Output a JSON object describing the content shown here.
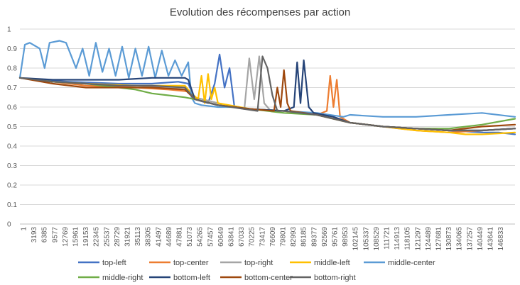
{
  "chart_data": {
    "type": "line",
    "title": "Evolution des récompenses par action",
    "xlabel": "",
    "ylabel": "",
    "ylim": [
      0,
      1
    ],
    "yticks": [
      0,
      0.1,
      0.2,
      0.3,
      0.4,
      0.5,
      0.6,
      0.7,
      0.8,
      0.9,
      1
    ],
    "ytick_labels": [
      "0",
      "0.1",
      "0.2",
      "0.3",
      "0.4",
      "0.5",
      "0.6",
      "0.7",
      "0.8",
      "0.9",
      "1"
    ],
    "xlim": [
      1,
      150000
    ],
    "xtick_labels": [
      "1",
      "3193",
      "6385",
      "9577",
      "12769",
      "15961",
      "19153",
      "22345",
      "25537",
      "28729",
      "31921",
      "35113",
      "38305",
      "41497",
      "44689",
      "47881",
      "51073",
      "54265",
      "57457",
      "60649",
      "63841",
      "67033",
      "70225",
      "73417",
      "76609",
      "79801",
      "82993",
      "86185",
      "89377",
      "92569",
      "95761",
      "98953",
      "102145",
      "105337",
      "108529",
      "111721",
      "114913",
      "118105",
      "121297",
      "124489",
      "127681",
      "130873",
      "134065",
      "137257",
      "140449",
      "143641",
      "146833"
    ],
    "grid": "horizontal",
    "legend_position": "bottom",
    "series": [
      {
        "name": "top-left",
        "color": "#4472C4",
        "x": [
          1,
          5000,
          15000,
          30000,
          40000,
          48000,
          51000,
          53000,
          55000,
          57000,
          59000,
          60500,
          62000,
          63500,
          65000,
          70000,
          80000,
          90000,
          100000,
          110000,
          120000,
          130000,
          140000,
          145000,
          150000
        ],
        "y": [
          0.75,
          0.74,
          0.73,
          0.72,
          0.72,
          0.73,
          0.72,
          0.64,
          0.63,
          0.62,
          0.72,
          0.87,
          0.7,
          0.8,
          0.6,
          0.59,
          0.58,
          0.56,
          0.52,
          0.5,
          0.49,
          0.48,
          0.47,
          0.47,
          0.46
        ]
      },
      {
        "name": "top-center",
        "color": "#ED7D31",
        "x": [
          1,
          10000,
          20000,
          35000,
          45000,
          51000,
          53000,
          60000,
          70000,
          80000,
          90000,
          93000,
          94000,
          95000,
          96000,
          97000,
          100000,
          110000,
          120000,
          130000,
          140000,
          150000
        ],
        "y": [
          0.75,
          0.73,
          0.71,
          0.7,
          0.69,
          0.68,
          0.64,
          0.61,
          0.59,
          0.58,
          0.56,
          0.58,
          0.76,
          0.6,
          0.74,
          0.55,
          0.52,
          0.5,
          0.48,
          0.47,
          0.48,
          0.49
        ]
      },
      {
        "name": "top-right",
        "color": "#A5A5A5",
        "x": [
          1,
          10000,
          20000,
          35000,
          45000,
          50000,
          53000,
          60000,
          65000,
          68000,
          69500,
          71000,
          72500,
          74000,
          76000,
          80000,
          90000,
          100000,
          110000,
          120000,
          130000,
          140000,
          150000
        ],
        "y": [
          0.75,
          0.73,
          0.72,
          0.71,
          0.7,
          0.7,
          0.65,
          0.62,
          0.6,
          0.59,
          0.85,
          0.64,
          0.86,
          0.62,
          0.58,
          0.58,
          0.56,
          0.52,
          0.5,
          0.49,
          0.48,
          0.48,
          0.49
        ]
      },
      {
        "name": "middle-left",
        "color": "#FFC000",
        "x": [
          1,
          10000,
          20000,
          35000,
          45000,
          50000,
          52000,
          54000,
          55000,
          56000,
          57000,
          58000,
          59000,
          60000,
          70000,
          80000,
          90000,
          100000,
          110000,
          120000,
          130000,
          135000,
          140000,
          150000
        ],
        "y": [
          0.75,
          0.73,
          0.72,
          0.71,
          0.71,
          0.71,
          0.67,
          0.64,
          0.76,
          0.62,
          0.77,
          0.64,
          0.7,
          0.62,
          0.59,
          0.58,
          0.56,
          0.52,
          0.5,
          0.48,
          0.47,
          0.46,
          0.46,
          0.47
        ]
      },
      {
        "name": "middle-center",
        "color": "#5B9BD5",
        "x": [
          1,
          1500,
          3000,
          6000,
          7500,
          9000,
          12000,
          14000,
          17000,
          19000,
          21000,
          23000,
          25000,
          27000,
          29000,
          31000,
          33000,
          35000,
          37000,
          39000,
          41000,
          43000,
          45000,
          47000,
          49000,
          51000,
          52000,
          53000,
          55000,
          60000,
          65000,
          70000,
          80000,
          90000,
          98000,
          100000,
          110000,
          120000,
          130000,
          140000,
          150000
        ],
        "y": [
          0.75,
          0.92,
          0.93,
          0.9,
          0.8,
          0.93,
          0.94,
          0.93,
          0.8,
          0.9,
          0.76,
          0.93,
          0.78,
          0.9,
          0.76,
          0.91,
          0.75,
          0.9,
          0.76,
          0.91,
          0.75,
          0.89,
          0.76,
          0.84,
          0.76,
          0.83,
          0.65,
          0.62,
          0.61,
          0.6,
          0.6,
          0.59,
          0.58,
          0.57,
          0.55,
          0.56,
          0.55,
          0.55,
          0.56,
          0.57,
          0.55
        ]
      },
      {
        "name": "middle-right",
        "color": "#70AD47",
        "x": [
          1,
          10000,
          20000,
          30000,
          35000,
          40000,
          45000,
          50000,
          53000,
          60000,
          70000,
          80000,
          90000,
          100000,
          110000,
          120000,
          130000,
          140000,
          150000
        ],
        "y": [
          0.75,
          0.73,
          0.72,
          0.7,
          0.69,
          0.67,
          0.66,
          0.65,
          0.64,
          0.61,
          0.59,
          0.57,
          0.56,
          0.52,
          0.5,
          0.49,
          0.49,
          0.51,
          0.54
        ]
      },
      {
        "name": "bottom-left",
        "color": "#264478",
        "x": [
          1,
          10000,
          20000,
          30000,
          40000,
          48000,
          50000,
          51000,
          53000,
          60000,
          70000,
          80000,
          83000,
          84000,
          85000,
          86000,
          87500,
          89000,
          95000,
          100000,
          110000,
          120000,
          130000,
          140000,
          150000
        ],
        "y": [
          0.75,
          0.74,
          0.74,
          0.74,
          0.75,
          0.75,
          0.75,
          0.74,
          0.64,
          0.61,
          0.59,
          0.58,
          0.6,
          0.83,
          0.62,
          0.84,
          0.6,
          0.57,
          0.55,
          0.52,
          0.5,
          0.49,
          0.48,
          0.48,
          0.49
        ]
      },
      {
        "name": "bottom-center",
        "color": "#9E480E",
        "x": [
          1,
          10000,
          20000,
          30000,
          40000,
          50000,
          53000,
          60000,
          70000,
          77000,
          78000,
          79000,
          80000,
          81000,
          82000,
          90000,
          100000,
          110000,
          120000,
          130000,
          140000,
          150000
        ],
        "y": [
          0.75,
          0.72,
          0.7,
          0.7,
          0.7,
          0.69,
          0.64,
          0.61,
          0.59,
          0.58,
          0.7,
          0.6,
          0.79,
          0.62,
          0.58,
          0.56,
          0.52,
          0.5,
          0.49,
          0.48,
          0.5,
          0.51
        ]
      },
      {
        "name": "bottom-right",
        "color": "#636363",
        "x": [
          1,
          10000,
          20000,
          30000,
          40000,
          50000,
          53000,
          60000,
          68000,
          72000,
          73500,
          75000,
          76500,
          78000,
          80000,
          90000,
          100000,
          110000,
          120000,
          130000,
          140000,
          150000
        ],
        "y": [
          0.75,
          0.73,
          0.72,
          0.71,
          0.71,
          0.7,
          0.64,
          0.61,
          0.59,
          0.58,
          0.86,
          0.8,
          0.66,
          0.58,
          0.58,
          0.56,
          0.52,
          0.5,
          0.49,
          0.48,
          0.48,
          0.49
        ]
      }
    ]
  }
}
